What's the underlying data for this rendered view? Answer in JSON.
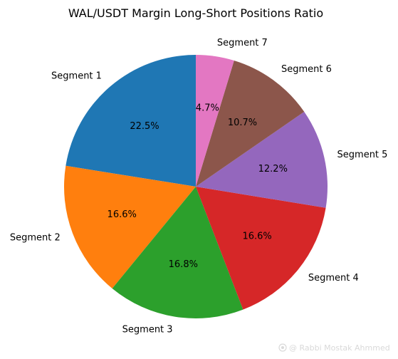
{
  "chart_data": {
    "type": "pie",
    "title": "WAL/USDT Margin Long-Short Positions Ratio",
    "start_angle_deg": 90,
    "direction": "counterclockwise",
    "slices": [
      {
        "label": "Segment 1",
        "value": 22.5,
        "pct_label": "22.5%",
        "color": "#1f77b4"
      },
      {
        "label": "Segment 2",
        "value": 16.6,
        "pct_label": "16.6%",
        "color": "#ff7f0e"
      },
      {
        "label": "Segment 3",
        "value": 16.8,
        "pct_label": "16.8%",
        "color": "#2ca02c"
      },
      {
        "label": "Segment 4",
        "value": 16.6,
        "pct_label": "16.6%",
        "color": "#d62728"
      },
      {
        "label": "Segment 5",
        "value": 12.2,
        "pct_label": "12.2%",
        "color": "#9467bd"
      },
      {
        "label": "Segment 6",
        "value": 10.7,
        "pct_label": "10.7%",
        "color": "#8c564b"
      },
      {
        "label": "Segment 7",
        "value": 4.7,
        "pct_label": "4.7%",
        "color": "#e377c2"
      }
    ]
  },
  "watermark": {
    "text": "@ Rabbi  Mostak Ahmmed",
    "icon": "camera-icon"
  }
}
